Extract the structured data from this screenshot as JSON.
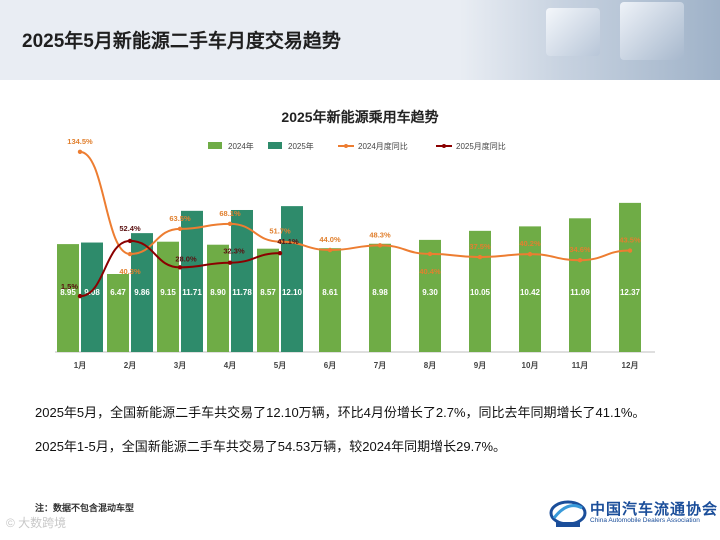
{
  "header": {
    "title": "2025年5月新能源二手车月度交易趋势"
  },
  "chart_data": {
    "type": "bar",
    "title": "2025年新能源乘用车趋势",
    "categories": [
      "1月",
      "2月",
      "3月",
      "4月",
      "5月",
      "6月",
      "7月",
      "8月",
      "9月",
      "10月",
      "11月",
      "12月"
    ],
    "series": [
      {
        "name": "2024年",
        "kind": "bar",
        "color": "#6fac46",
        "values": [
          8.95,
          6.47,
          9.15,
          8.9,
          8.57,
          8.61,
          8.98,
          9.3,
          10.05,
          10.42,
          11.09,
          12.37
        ]
      },
      {
        "name": "2025年",
        "kind": "bar",
        "color": "#2e8b6b",
        "values": [
          9.08,
          9.86,
          11.71,
          11.78,
          12.1,
          null,
          null,
          null,
          null,
          null,
          null,
          null
        ]
      },
      {
        "name": "2024月度同比",
        "kind": "line",
        "color": "#ed7d31",
        "values": [
          134.5,
          40.3,
          63.5,
          68.1,
          51.7,
          44.0,
          48.3,
          40.4,
          37.5,
          40.2,
          34.6,
          43.5
        ]
      },
      {
        "name": "2025月度同比",
        "kind": "line",
        "color": "#8b0000",
        "values": [
          1.5,
          52.4,
          28.0,
          32.3,
          41.1,
          null,
          null,
          null,
          null,
          null,
          null,
          null
        ]
      }
    ],
    "value_labels": {
      "2024年": [
        "8.95",
        "6.47",
        "9.15",
        "8.90",
        "8.57",
        "8.61",
        "8.98",
        "9.30",
        "10.05",
        "10.42",
        "11.09",
        "12.37"
      ],
      "2025年": [
        "9.08",
        "9.86",
        "11.71",
        "11.78",
        "12.10",
        "",
        "",
        "",
        "",
        "",
        "",
        ""
      ],
      "2024月度同比": [
        "134.5%",
        "40.3%",
        "63.5%",
        "68.1%",
        "51.7%",
        "44.0%",
        "48.3%",
        "40.4%",
        "37.5%",
        "40.2%",
        "34.6%",
        "43.5%"
      ],
      "2025月度同比": [
        "1.5%",
        "52.4%",
        "28.0%",
        "32.3%",
        "41.1%",
        "",
        "",
        "",
        "",
        "",
        "",
        ""
      ]
    },
    "bar_axis_range": [
      0,
      18
    ],
    "line_axis_range": [
      -50,
      150
    ],
    "legend_position": "top"
  },
  "summary": {
    "line1": "2025年5月，全国新能源二手车共交易了12.10万辆，环比4月份增长了2.7%，同比去年同期增长了41.1%。",
    "line2": "2025年1-5月，全国新能源二手车共交易了54.53万辆，较2024年同期增长29.7%。"
  },
  "note": "注：数据不包含混动车型",
  "logo": {
    "cn": "中国汽车流通协会",
    "en": "China Automobile Dealers Association"
  },
  "watermark": "© 大数跨境"
}
